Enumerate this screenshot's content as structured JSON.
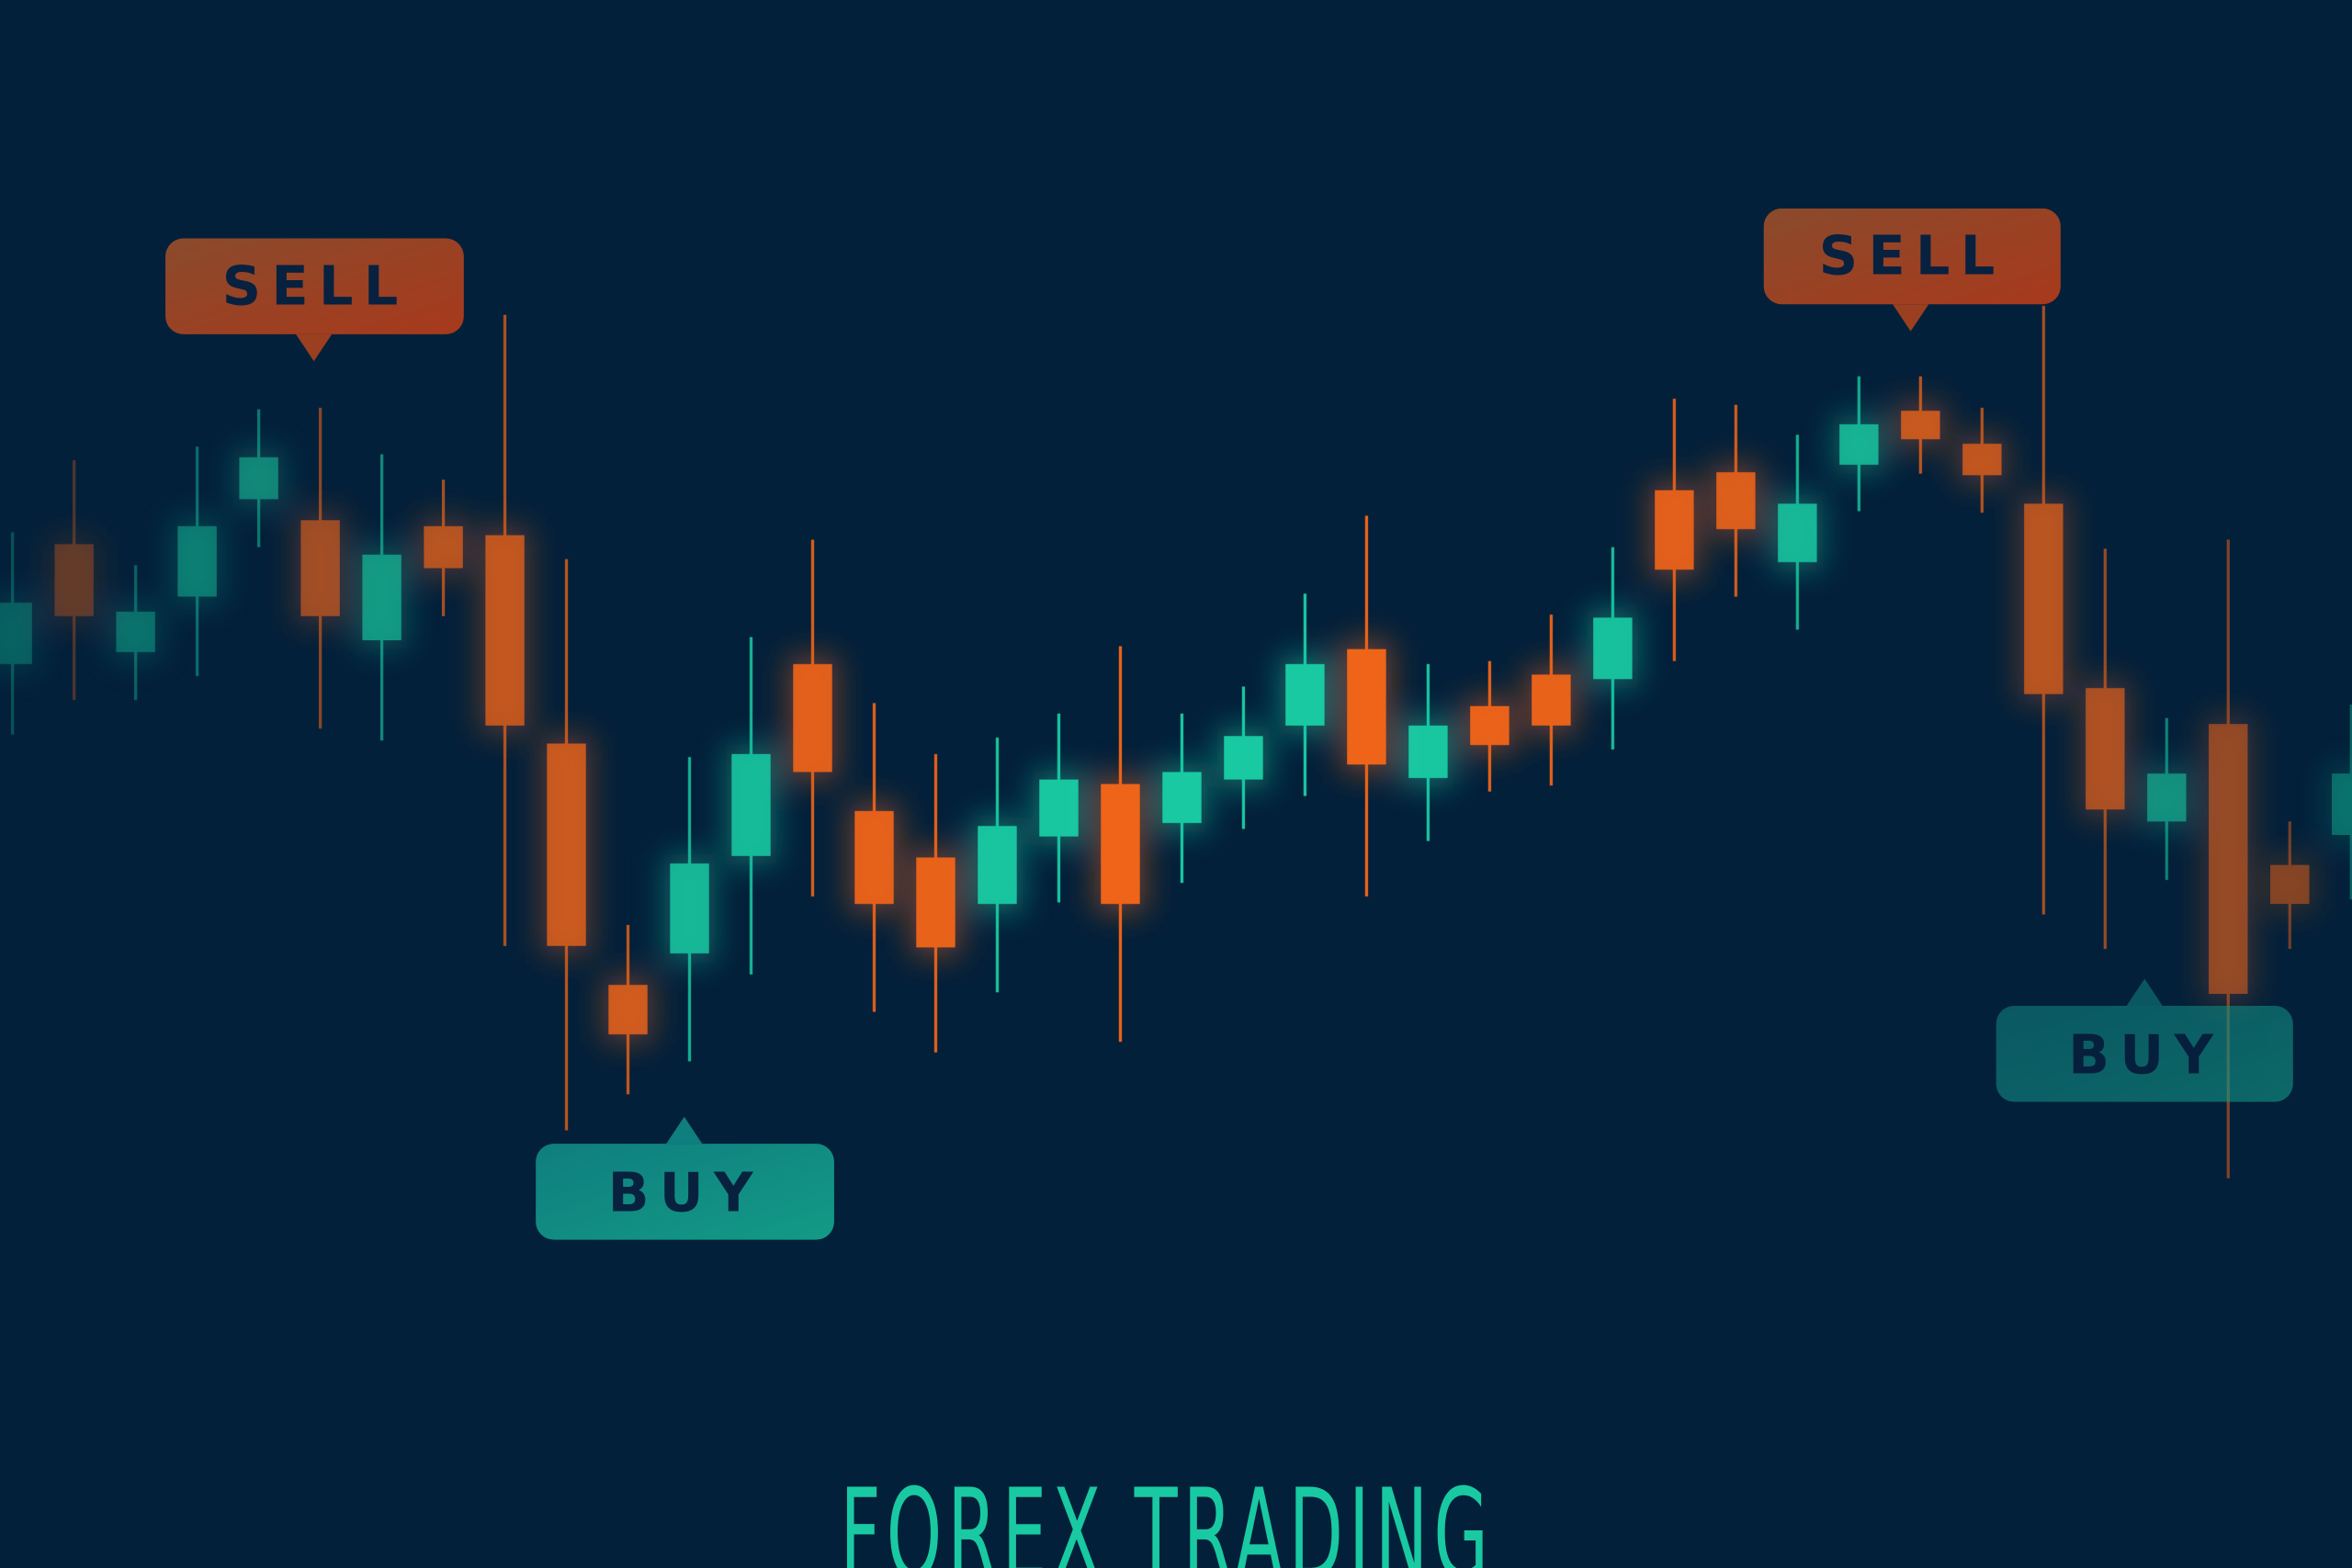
{
  "title": "FOREX TRADING",
  "colors": {
    "background": "#03203a",
    "bullish": "#19c9a2",
    "bearish": "#f0651a",
    "label_text": "#07213f"
  },
  "labels": {
    "sell_left": "SELL",
    "buy_left": "BUY",
    "sell_right": "SELL",
    "buy_right": "BUY"
  },
  "chart_data": {
    "type": "candlestick",
    "grid": false,
    "axes_visible": false,
    "candles": [
      {
        "o": 60.3,
        "h": 69.1,
        "l": 55.6,
        "c": 64.4
      },
      {
        "o": 68.3,
        "h": 73.9,
        "l": 57.9,
        "c": 63.5
      },
      {
        "o": 61.1,
        "h": 66.9,
        "l": 57.9,
        "c": 63.8
      },
      {
        "o": 64.8,
        "h": 74.8,
        "l": 59.5,
        "c": 69.5
      },
      {
        "o": 71.3,
        "h": 77.3,
        "l": 68.1,
        "c": 74.1
      },
      {
        "o": 69.9,
        "h": 77.4,
        "l": 56.0,
        "c": 63.5
      },
      {
        "o": 61.9,
        "h": 74.3,
        "l": 55.2,
        "c": 67.6
      },
      {
        "o": 69.5,
        "h": 72.6,
        "l": 63.5,
        "c": 66.7
      },
      {
        "o": 68.9,
        "h": 83.6,
        "l": 41.5,
        "c": 56.2
      },
      {
        "o": 55.0,
        "h": 67.3,
        "l": 29.2,
        "c": 41.5
      },
      {
        "o": 38.9,
        "h": 42.9,
        "l": 31.6,
        "c": 35.6
      },
      {
        "o": 41.0,
        "h": 54.1,
        "l": 33.8,
        "c": 47.0
      },
      {
        "o": 47.5,
        "h": 62.1,
        "l": 39.6,
        "c": 54.3
      },
      {
        "o": 60.3,
        "h": 68.6,
        "l": 44.8,
        "c": 53.1
      },
      {
        "o": 50.5,
        "h": 57.7,
        "l": 37.1,
        "c": 44.3
      },
      {
        "o": 47.4,
        "h": 54.3,
        "l": 34.4,
        "c": 41.4
      },
      {
        "o": 44.3,
        "h": 55.4,
        "l": 38.4,
        "c": 49.5
      },
      {
        "o": 48.8,
        "h": 57.0,
        "l": 44.4,
        "c": 52.6
      },
      {
        "o": 52.3,
        "h": 61.5,
        "l": 35.1,
        "c": 44.3
      },
      {
        "o": 49.7,
        "h": 57.0,
        "l": 45.7,
        "c": 53.1
      },
      {
        "o": 52.6,
        "h": 58.8,
        "l": 49.3,
        "c": 55.5
      },
      {
        "o": 56.2,
        "h": 65.0,
        "l": 51.5,
        "c": 60.3
      },
      {
        "o": 61.3,
        "h": 70.2,
        "l": 44.8,
        "c": 53.6
      },
      {
        "o": 52.7,
        "h": 60.3,
        "l": 48.5,
        "c": 56.2
      },
      {
        "o": 57.5,
        "h": 60.5,
        "l": 51.8,
        "c": 54.9
      },
      {
        "o": 59.6,
        "h": 63.6,
        "l": 52.2,
        "c": 56.2
      },
      {
        "o": 59.3,
        "h": 68.1,
        "l": 54.6,
        "c": 63.4
      },
      {
        "o": 71.9,
        "h": 78.0,
        "l": 60.5,
        "c": 66.6
      },
      {
        "o": 73.1,
        "h": 77.6,
        "l": 64.8,
        "c": 69.3
      },
      {
        "o": 67.1,
        "h": 75.6,
        "l": 62.6,
        "c": 71.0
      },
      {
        "o": 73.6,
        "h": 79.5,
        "l": 70.5,
        "c": 76.3
      },
      {
        "o": 77.2,
        "h": 79.5,
        "l": 73.0,
        "c": 75.3
      },
      {
        "o": 75.0,
        "h": 77.4,
        "l": 70.4,
        "c": 72.9
      },
      {
        "o": 71.0,
        "h": 84.2,
        "l": 43.6,
        "c": 58.3
      },
      {
        "o": 58.7,
        "h": 68.0,
        "l": 41.3,
        "c": 50.6
      },
      {
        "o": 49.8,
        "h": 56.7,
        "l": 45.9,
        "c": 53.0
      },
      {
        "o": 56.3,
        "h": 68.6,
        "l": 26.0,
        "c": 38.3
      },
      {
        "o": 46.9,
        "h": 49.8,
        "l": 41.3,
        "c": 44.3
      },
      {
        "o": 48.9,
        "h": 57.6,
        "l": 44.6,
        "c": 53.0
      }
    ],
    "annotations": [
      {
        "text": "SELL",
        "candle_index": 4
      },
      {
        "text": "BUY",
        "candle_index": 11
      },
      {
        "text": "SELL",
        "candle_index": 31
      },
      {
        "text": "BUY",
        "candle_index": 35
      }
    ]
  }
}
